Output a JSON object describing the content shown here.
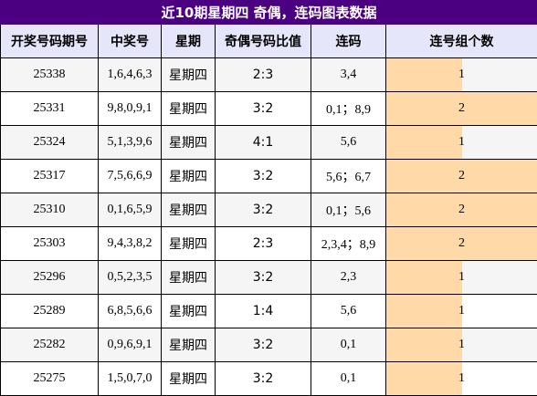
{
  "title": "近10期星期四 奇偶，连码图表数据",
  "headers": [
    "开奖号码期号",
    "中奖号",
    "星期",
    "奇偶号码比值",
    "连码",
    "连号组个数"
  ],
  "rows": [
    {
      "issue": "25338",
      "numbers": "1,6,4,6,3",
      "weekday": "星期四",
      "ratio": "2:3",
      "consecutive": "3,4",
      "count": "1",
      "count_value": 1
    },
    {
      "issue": "25331",
      "numbers": "9,8,0,9,1",
      "weekday": "星期四",
      "ratio": "3:2",
      "consecutive": "0,1；8,9",
      "count": "2",
      "count_value": 2
    },
    {
      "issue": "25324",
      "numbers": "5,1,3,9,6",
      "weekday": "星期四",
      "ratio": "4:1",
      "consecutive": "5,6",
      "count": "1",
      "count_value": 1
    },
    {
      "issue": "25317",
      "numbers": "7,5,6,6,9",
      "weekday": "星期四",
      "ratio": "3:2",
      "consecutive": "5,6；6,7",
      "count": "2",
      "count_value": 2
    },
    {
      "issue": "25310",
      "numbers": "0,1,6,5,9",
      "weekday": "星期四",
      "ratio": "3:2",
      "consecutive": "0,1；5,6",
      "count": "2",
      "count_value": 2
    },
    {
      "issue": "25303",
      "numbers": "9,4,3,8,2",
      "weekday": "星期四",
      "ratio": "2:3",
      "consecutive": "2,3,4；8,9",
      "count": "2",
      "count_value": 2
    },
    {
      "issue": "25296",
      "numbers": "0,5,2,3,5",
      "weekday": "星期四",
      "ratio": "3:2",
      "consecutive": "2,3",
      "count": "1",
      "count_value": 1
    },
    {
      "issue": "25289",
      "numbers": "6,8,5,6,6",
      "weekday": "星期四",
      "ratio": "1:4",
      "consecutive": "5,6",
      "count": "1",
      "count_value": 1
    },
    {
      "issue": "25282",
      "numbers": "0,9,6,9,1",
      "weekday": "星期四",
      "ratio": "3:2",
      "consecutive": "0,1",
      "count": "1",
      "count_value": 1
    },
    {
      "issue": "25275",
      "numbers": "1,5,0,7,0",
      "weekday": "星期四",
      "ratio": "3:2",
      "consecutive": "0,1",
      "count": "1",
      "count_value": 1
    }
  ],
  "colors": {
    "title_bg": "#4b0082",
    "header_bg": "#e6e6fa",
    "bar_fill": "#ffd9a8"
  }
}
